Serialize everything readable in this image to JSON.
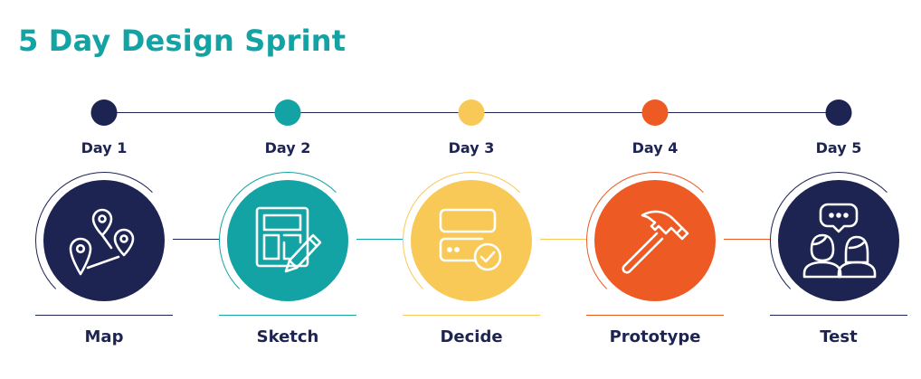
{
  "title": "5 Day Design Sprint",
  "colors": {
    "navy": "#1d2452",
    "teal": "#14a3a4",
    "yellow": "#f9c957",
    "orange": "#ee5a24"
  },
  "steps": [
    {
      "day": "Day 1",
      "label": "Map",
      "icon": "map-pins-icon",
      "color": "#1d2452"
    },
    {
      "day": "Day 2",
      "label": "Sketch",
      "icon": "sketch-pencil-icon",
      "color": "#14a3a4"
    },
    {
      "day": "Day 3",
      "label": "Decide",
      "icon": "decide-check-icon",
      "color": "#f9c957"
    },
    {
      "day": "Day 4",
      "label": "Prototype",
      "icon": "hammer-icon",
      "color": "#ee5a24"
    },
    {
      "day": "Day 5",
      "label": "Test",
      "icon": "users-chat-icon",
      "color": "#1d2452"
    }
  ]
}
